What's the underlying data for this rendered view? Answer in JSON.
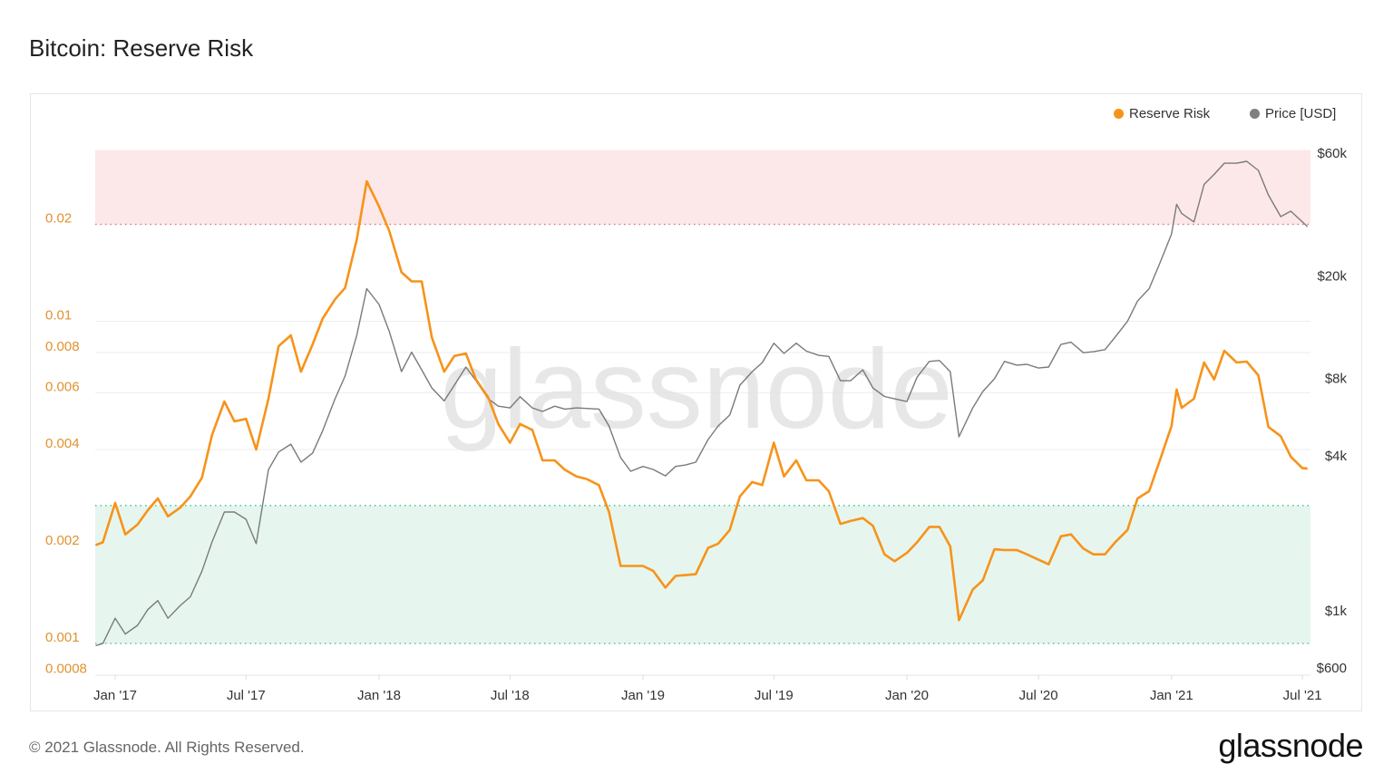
{
  "title": "Bitcoin: Reserve Risk",
  "footer": "© 2021 Glassnode. All Rights Reserved.",
  "logo": "glassnode",
  "watermark": "glassnode",
  "chart_data": {
    "type": "line",
    "title": "Bitcoin: Reserve Risk",
    "legend_position": "top-right",
    "grid": true,
    "x_ticks": [
      "Jan '17",
      "Jul '17",
      "Jan '18",
      "Jul '18",
      "Jan '19",
      "Jul '19",
      "Jan '20",
      "Jul '20",
      "Jan '21",
      "Jul '21"
    ],
    "x_tick_dates": [
      "2017-01-01",
      "2017-07-01",
      "2018-01-01",
      "2018-07-01",
      "2019-01-01",
      "2019-07-01",
      "2020-01-01",
      "2020-07-01",
      "2021-01-01",
      "2021-07-01"
    ],
    "xlim": [
      "2016-12-04",
      "2021-07-08"
    ],
    "left_axis": {
      "scale": "log",
      "ylim": [
        0.00075,
        0.034
      ],
      "ticks": [
        0.0008,
        0.001,
        0.002,
        0.004,
        0.006,
        0.008,
        0.01,
        0.02
      ],
      "tick_labels": [
        "0.0008",
        "0.001",
        "0.002",
        "0.004",
        "0.006",
        "0.008",
        "0.01",
        "0.02"
      ],
      "color": "#e0922f"
    },
    "right_axis": {
      "scale": "log",
      "ylim": [
        570,
        75000
      ],
      "ticks": [
        600,
        1000,
        4000,
        8000,
        20000,
        60000
      ],
      "tick_labels": [
        "$600",
        "$1k",
        "$4k",
        "$8k",
        "$20k",
        "$60k"
      ]
    },
    "bands": [
      {
        "name": "high",
        "from": 0.02,
        "to": 0.034,
        "color": "#fde8e9",
        "line_color": "#f07070"
      },
      {
        "name": "low",
        "from": 0.001,
        "to": 0.00268,
        "color": "#e6f6ee",
        "line_color": "#35c08a"
      }
    ],
    "series": [
      {
        "name": "Reserve Risk",
        "axis": "left",
        "color": "#f7931a",
        "x": [
          "2016-12-05",
          "2016-12-15",
          "2017-01-01",
          "2017-01-15",
          "2017-02-01",
          "2017-02-15",
          "2017-03-01",
          "2017-03-15",
          "2017-04-01",
          "2017-04-15",
          "2017-05-01",
          "2017-05-15",
          "2017-06-01",
          "2017-06-15",
          "2017-07-01",
          "2017-07-15",
          "2017-08-01",
          "2017-08-15",
          "2017-09-01",
          "2017-09-15",
          "2017-10-01",
          "2017-10-15",
          "2017-11-01",
          "2017-11-15",
          "2017-12-01",
          "2017-12-15",
          "2018-01-01",
          "2018-01-15",
          "2018-02-01",
          "2018-02-15",
          "2018-03-01",
          "2018-03-15",
          "2018-04-01",
          "2018-04-15",
          "2018-05-01",
          "2018-05-15",
          "2018-06-01",
          "2018-06-15",
          "2018-07-01",
          "2018-07-15",
          "2018-08-01",
          "2018-08-15",
          "2018-09-01",
          "2018-09-15",
          "2018-10-01",
          "2018-10-15",
          "2018-11-01",
          "2018-11-15",
          "2018-12-01",
          "2018-12-15",
          "2019-01-01",
          "2019-01-15",
          "2019-02-01",
          "2019-02-15",
          "2019-03-01",
          "2019-03-15",
          "2019-04-01",
          "2019-04-15",
          "2019-05-01",
          "2019-05-15",
          "2019-06-01",
          "2019-06-15",
          "2019-07-01",
          "2019-07-15",
          "2019-08-01",
          "2019-08-15",
          "2019-09-01",
          "2019-09-15",
          "2019-10-01",
          "2019-10-15",
          "2019-11-01",
          "2019-11-15",
          "2019-12-01",
          "2019-12-15",
          "2020-01-01",
          "2020-01-15",
          "2020-02-01",
          "2020-02-15",
          "2020-03-01",
          "2020-03-13",
          "2020-04-01",
          "2020-04-15",
          "2020-05-01",
          "2020-05-15",
          "2020-06-01",
          "2020-06-15",
          "2020-07-01",
          "2020-07-15",
          "2020-08-01",
          "2020-08-15",
          "2020-09-01",
          "2020-09-15",
          "2020-10-01",
          "2020-10-15",
          "2020-11-01",
          "2020-11-15",
          "2020-12-01",
          "2020-12-15",
          "2021-01-01",
          "2021-01-08",
          "2021-01-15",
          "2021-02-01",
          "2021-02-15",
          "2021-03-01",
          "2021-03-15",
          "2021-04-01",
          "2021-04-15",
          "2021-05-01",
          "2021-05-15",
          "2021-06-01",
          "2021-06-15",
          "2021-07-01",
          "2021-07-08"
        ],
        "values": [
          0.00202,
          0.00206,
          0.00273,
          0.00218,
          0.00234,
          0.00259,
          0.00282,
          0.00248,
          0.00264,
          0.00286,
          0.00327,
          0.00444,
          0.00564,
          0.00489,
          0.00498,
          0.004,
          0.00575,
          0.00837,
          0.00905,
          0.00698,
          0.00848,
          0.0102,
          0.0117,
          0.0127,
          0.0179,
          0.0272,
          0.0227,
          0.0191,
          0.0142,
          0.0133,
          0.0133,
          0.0089,
          0.00698,
          0.0078,
          0.00795,
          0.0066,
          0.0058,
          0.0048,
          0.0042,
          0.0048,
          0.0046,
          0.0037,
          0.0037,
          0.00346,
          0.0033,
          0.00324,
          0.0031,
          0.00256,
          0.00174,
          0.00174,
          0.00174,
          0.00168,
          0.00149,
          0.00162,
          0.00163,
          0.00164,
          0.00198,
          0.00204,
          0.00225,
          0.00286,
          0.00317,
          0.0031,
          0.0042,
          0.0033,
          0.0037,
          0.00321,
          0.00321,
          0.00297,
          0.00235,
          0.0024,
          0.00245,
          0.00232,
          0.00189,
          0.0018,
          0.00191,
          0.00206,
          0.0023,
          0.0023,
          0.002,
          0.00118,
          0.00147,
          0.00157,
          0.00196,
          0.00195,
          0.00195,
          0.00189,
          0.00182,
          0.00176,
          0.00215,
          0.00218,
          0.00197,
          0.00189,
          0.00189,
          0.00206,
          0.00225,
          0.00282,
          0.00297,
          0.00365,
          0.00473,
          0.00614,
          0.00539,
          0.00575,
          0.00745,
          0.0066,
          0.0081,
          0.00745,
          0.0075,
          0.0068,
          0.0047,
          0.0044,
          0.0038,
          0.0035,
          0.00349
        ]
      },
      {
        "name": "Price [USD]",
        "axis": "right",
        "color": "#7a7a7a",
        "x": "same",
        "values": [
          775,
          790,
          990,
          860,
          930,
          1070,
          1160,
          990,
          1110,
          1200,
          1510,
          1960,
          2560,
          2560,
          2400,
          1930,
          3740,
          4380,
          4700,
          4000,
          4340,
          5300,
          7050,
          8640,
          12400,
          18900,
          16400,
          12900,
          9000,
          10700,
          9140,
          7770,
          6920,
          7960,
          9370,
          8290,
          7050,
          6600,
          6500,
          7180,
          6500,
          6300,
          6600,
          6430,
          6500,
          6470,
          6430,
          5530,
          4170,
          3690,
          3850,
          3750,
          3540,
          3850,
          3900,
          4000,
          4900,
          5530,
          6100,
          7960,
          8990,
          9750,
          11600,
          10580,
          11600,
          10800,
          10400,
          10300,
          8290,
          8290,
          9140,
          7770,
          7200,
          7050,
          6880,
          8560,
          9850,
          9930,
          8990,
          5020,
          6500,
          7530,
          8430,
          9850,
          9530,
          9600,
          9290,
          9370,
          11470,
          11700,
          10650,
          10750,
          10950,
          12240,
          14100,
          16900,
          18900,
          23400,
          30800,
          40200,
          37000,
          34300,
          48000,
          52500,
          58000,
          58000,
          59000,
          54400,
          43700,
          36000,
          37800,
          34300,
          32900
        ]
      }
    ]
  }
}
